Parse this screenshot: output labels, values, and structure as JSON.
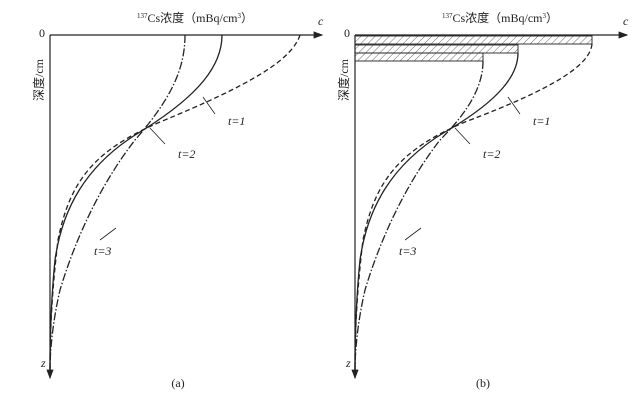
{
  "panels": [
    {
      "x_title": {
        "sup": "137",
        "main": "Cs浓度（mBq/cm",
        "sup2": "3",
        "end": "）"
      },
      "x_var": "c",
      "origin": "0",
      "y_title": "深度/cm",
      "y_var": "z",
      "curves": [
        "t=1",
        "t=2",
        "t=3"
      ],
      "caption": "(a)"
    },
    {
      "x_title": {
        "sup": "137",
        "main": "Cs浓度（mBq/cm",
        "sup2": "3",
        "end": "）"
      },
      "x_var": "c",
      "origin": "0",
      "y_title": "深度/cm",
      "y_var": "z",
      "curves": [
        "t=1",
        "t=2",
        "t=3"
      ],
      "caption": "(b)"
    }
  ]
}
